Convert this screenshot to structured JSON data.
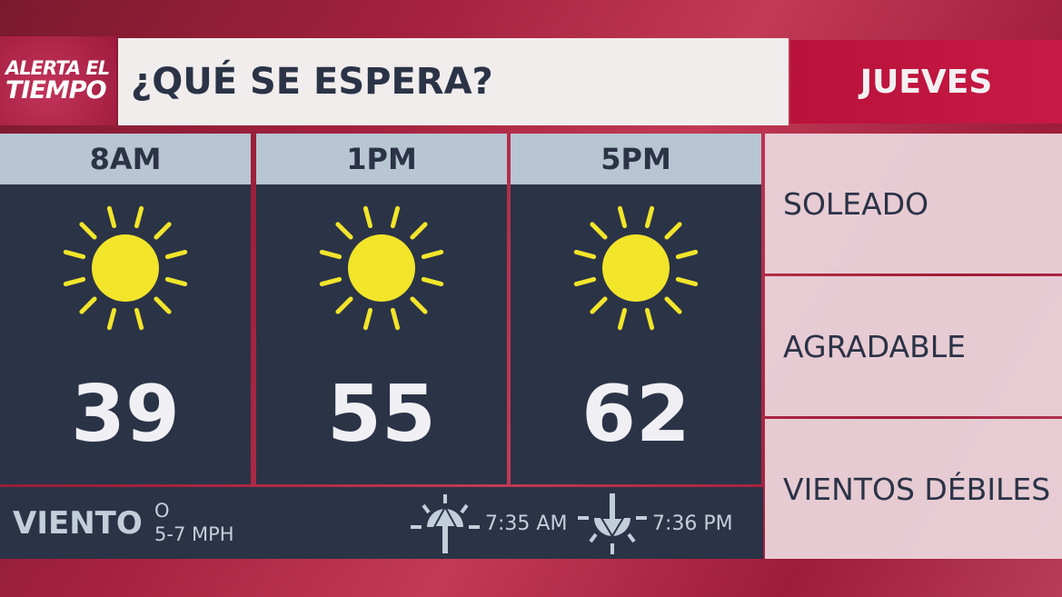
{
  "logo": {
    "line1": "ALERTA EL",
    "line2": "TIEMPO"
  },
  "title": "¿QUÉ SE ESPERA?",
  "day": "JUEVES",
  "forecast": [
    {
      "time": "8AM",
      "icon": "sun-icon",
      "temp": "39"
    },
    {
      "time": "1PM",
      "icon": "sun-icon",
      "temp": "55"
    },
    {
      "time": "5PM",
      "icon": "sun-icon",
      "temp": "62"
    }
  ],
  "conditions": [
    "SOLEADO",
    "AGRADABLE",
    "VIENTOS DÉBILES"
  ],
  "wind": {
    "label": "VIENTO",
    "direction": "O",
    "speed": "5-7 MPH"
  },
  "sunrise": {
    "icon": "sunrise-icon",
    "time": "7:35 AM"
  },
  "sunset": {
    "icon": "sunset-icon",
    "time": "7:36 PM"
  },
  "colors": {
    "accent": "#b8123a",
    "panel": "#2b3347",
    "header": "#b8c5d3",
    "sun": "#f2e52a"
  }
}
